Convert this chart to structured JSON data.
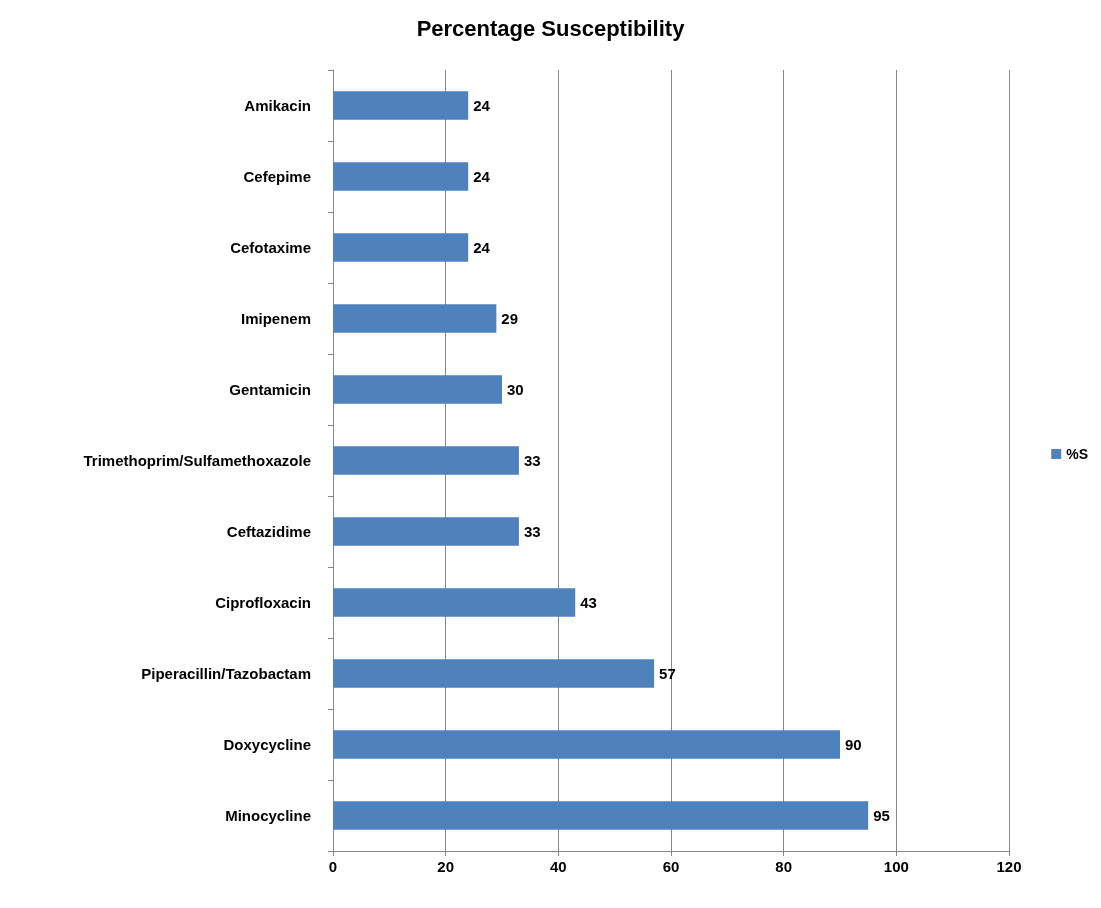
{
  "chart_data": {
    "type": "bar",
    "orientation": "horizontal",
    "title": "Percentage Susceptibility",
    "categories": [
      "Amikacin",
      "Cefepime",
      "Cefotaxime",
      "Imipenem",
      "Gentamicin",
      "Trimethoprim/Sulfamethoxazole",
      "Ceftazidime",
      "Ciprofloxacin",
      "Piperacillin/Tazobactam",
      "Doxycycline",
      "Minocycline"
    ],
    "series": [
      {
        "name": "%S",
        "color": "#4f81bd",
        "values": [
          24,
          24,
          24,
          29,
          30,
          33,
          33,
          43,
          57,
          90,
          95
        ]
      }
    ],
    "xlim": [
      0,
      120
    ],
    "xticks": [
      0,
      20,
      40,
      60,
      80,
      100,
      120
    ],
    "grid": "x",
    "legend": "right",
    "data_labels": true
  }
}
